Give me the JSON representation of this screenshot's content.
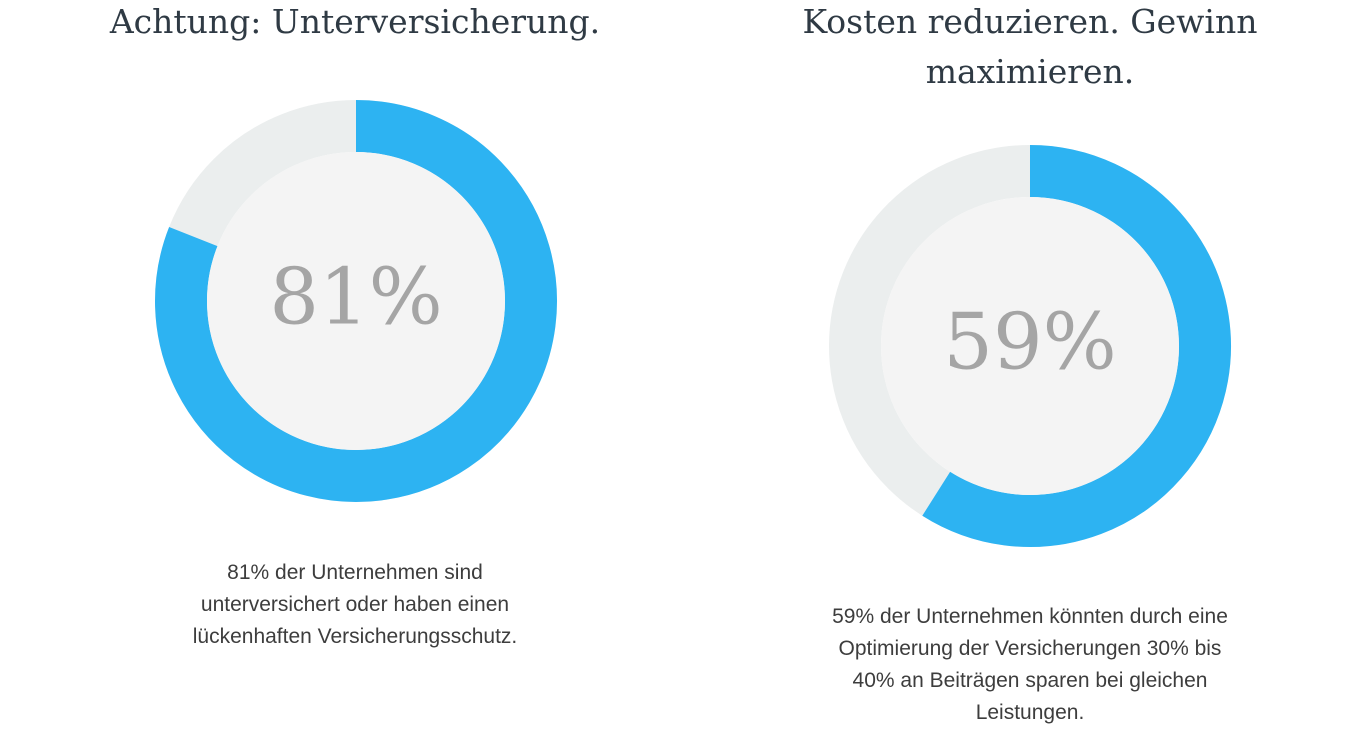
{
  "colors": {
    "accent": "#2db3f2",
    "track": "#ebeeee",
    "inner": "#f4f4f4"
  },
  "chart_data": [
    {
      "type": "pie",
      "title": "Achtung: Unterversicherung.",
      "value": 81,
      "label": "81%",
      "description": "81% der Unternehmen sind unterversichert oder haben einen lückenhaften Versicherungsschutz."
    },
    {
      "type": "pie",
      "title": "Kosten reduzieren. Gewinn maximieren.",
      "value": 59,
      "label": "59%",
      "description": "59% der Unternehmen könnten durch eine Optimierung der Versicherungen 30% bis 40% an Beiträgen sparen bei gleichen Leistungen."
    }
  ]
}
